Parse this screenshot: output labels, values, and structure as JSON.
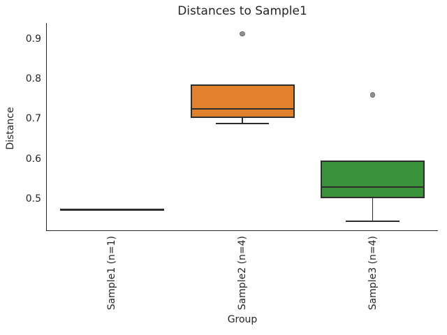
{
  "chart_data": {
    "type": "box",
    "title": "Distances to Sample1",
    "xlabel": "Group",
    "ylabel": "Distance",
    "ylim": [
      0.422,
      0.9395
    ],
    "yticks": [
      0.5,
      0.6,
      0.7,
      0.8,
      0.9
    ],
    "grid": false,
    "legend": false,
    "edge_color": "#2e2e2e",
    "flier_fill": "#919191",
    "flier_edge": "#6a6a6a",
    "groups": [
      {
        "label": "Sample1 (n=1)",
        "n": 1,
        "median": 0.473,
        "q1": 0.473,
        "q3": 0.473,
        "whisker_low": 0.473,
        "whisker_high": 0.473,
        "outliers": [],
        "color": null
      },
      {
        "label": "Sample2 (n=4)",
        "n": 4,
        "median": 0.725,
        "q1": 0.704,
        "q3": 0.785,
        "whisker_low": 0.689,
        "whisker_high": 0.785,
        "outliers": [
          0.912
        ],
        "color": "#e1812c"
      },
      {
        "label": "Sample3 (n=4)",
        "n": 4,
        "median": 0.53,
        "q1": 0.504,
        "q3": 0.595,
        "whisker_low": 0.445,
        "whisker_high": 0.595,
        "outliers": [
          0.76
        ],
        "color": "#3a923a"
      }
    ]
  }
}
